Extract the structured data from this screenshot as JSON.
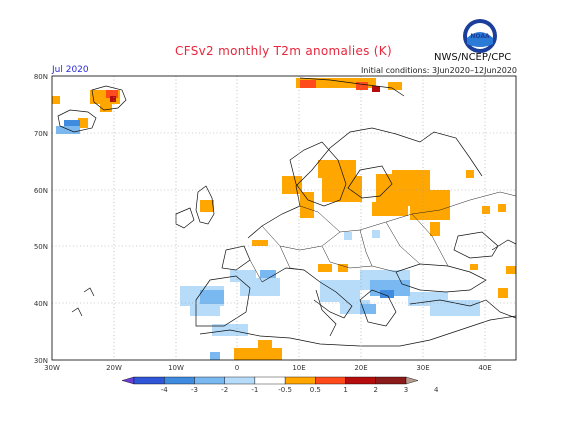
{
  "header": {
    "title": "CFSv2 monthly T2m anomalies (K)",
    "month": "Jul 2020",
    "initial_conditions": "Initial conditions: 3Jun2020–12Jun2020",
    "agency": "NWS/NCEP/CPC",
    "logo_text": "NOAA"
  },
  "map": {
    "lon_ticks": [
      "30W",
      "20W",
      "10W",
      "0",
      "10E",
      "20E",
      "30E",
      "40E"
    ],
    "lat_ticks": [
      "80N",
      "70N",
      "60N",
      "50N",
      "40N",
      "30N"
    ],
    "lon_range": [
      -30,
      45
    ],
    "lat_range": [
      30,
      80
    ]
  },
  "legend": {
    "labels": [
      "-4",
      "-3",
      "-2",
      "-1",
      "-0.5",
      "0.5",
      "1",
      "2",
      "3",
      "4"
    ],
    "colors": [
      "#6b3fd6",
      "#2f56d6",
      "#3f8be0",
      "#79b8f1",
      "#b7dcfa",
      "#ffffff",
      "#ffa600",
      "#ff4a1c",
      "#b50d0d",
      "#8b1a1a",
      "#b89b8e"
    ]
  },
  "colors": {
    "title": "#e8263d",
    "warm_anomaly": "#ffa600",
    "cool_anomaly": "#8fc3f4"
  }
}
